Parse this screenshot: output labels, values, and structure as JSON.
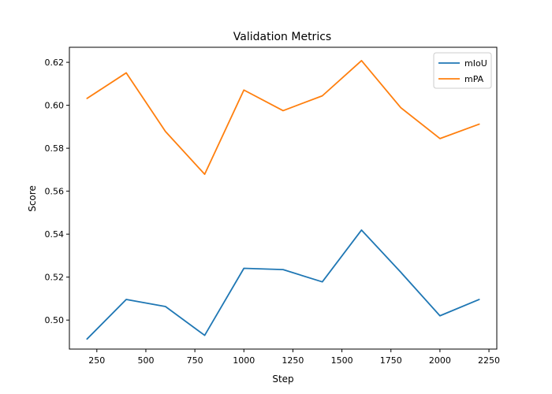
{
  "chart_data": {
    "type": "line",
    "title": "Validation Metrics",
    "xlabel": "Step",
    "ylabel": "Score",
    "xlim": [
      110,
      2290
    ],
    "ylim": [
      0.4865,
      0.627
    ],
    "xticks": [
      250,
      500,
      750,
      1000,
      1250,
      1500,
      1750,
      2000,
      2250
    ],
    "yticks": [
      0.5,
      0.52,
      0.54,
      0.56,
      0.58,
      0.6,
      0.62
    ],
    "x": [
      200,
      400,
      600,
      800,
      1000,
      1200,
      1400,
      1600,
      1800,
      2000,
      2200
    ],
    "series": [
      {
        "name": "mIoU",
        "color": "#1f77b4",
        "values": [
          0.4912,
          0.5096,
          0.5063,
          0.4929,
          0.5241,
          0.5235,
          0.5178,
          0.5419,
          0.5223,
          0.502,
          0.5096
        ]
      },
      {
        "name": "mPA",
        "color": "#ff7f0e",
        "values": [
          0.6032,
          0.6151,
          0.5878,
          0.5679,
          0.6071,
          0.5975,
          0.6044,
          0.6208,
          0.5989,
          0.5845,
          0.5912
        ]
      }
    ],
    "grid": false,
    "legend": "top-right"
  }
}
